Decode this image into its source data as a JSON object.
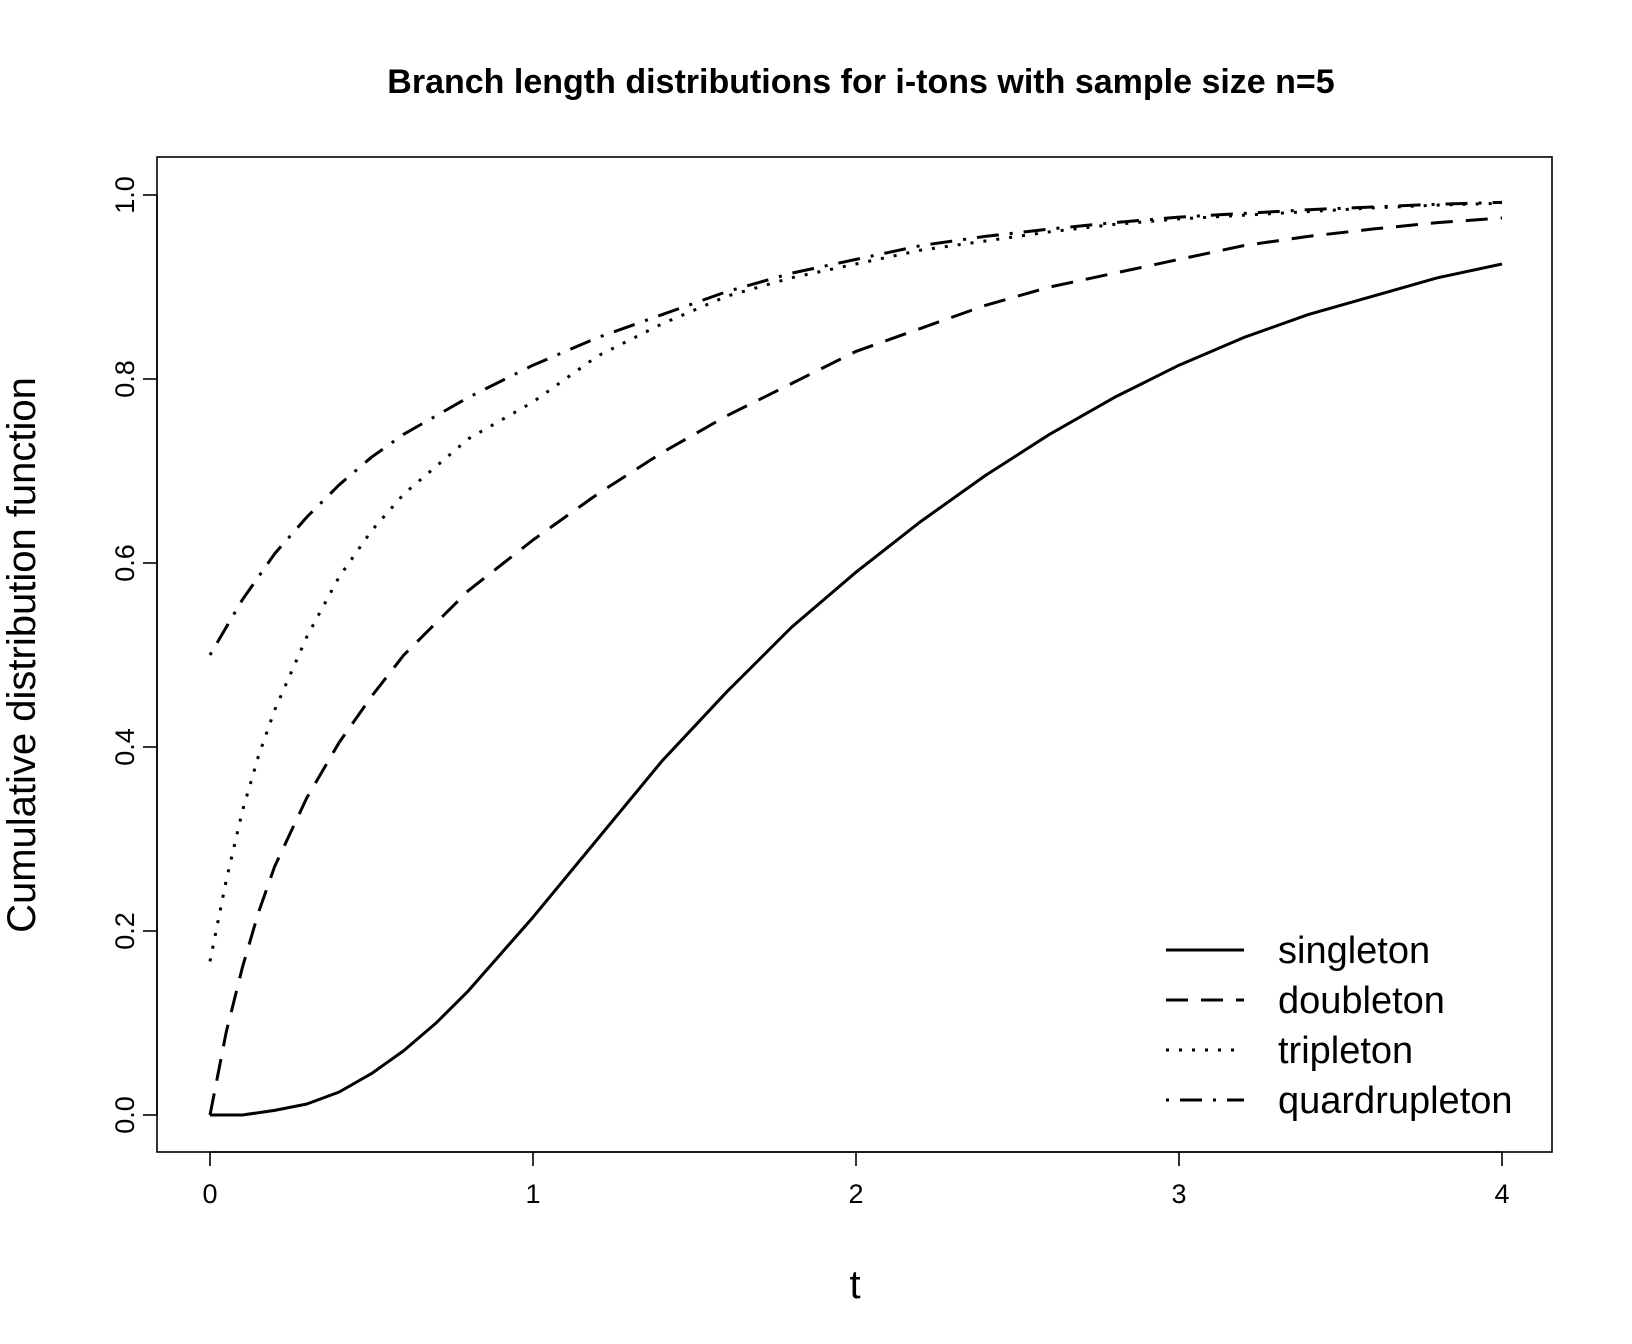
{
  "chart_data": {
    "type": "line",
    "title": "Branch length distributions for i-tons with sample size n=5",
    "xlabel": "t",
    "ylabel": "Cumulative distribution function",
    "xlim": [
      0,
      4
    ],
    "ylim": [
      0,
      1
    ],
    "x_ticks": [
      "0",
      "1",
      "2",
      "3",
      "4"
    ],
    "y_ticks": [
      "0.0",
      "0.2",
      "0.4",
      "0.6",
      "0.8",
      "1.0"
    ],
    "grid": false,
    "legend_position": "bottom-right",
    "series": [
      {
        "name": "singleton",
        "dash": "solid",
        "x": [
          0,
          0.1,
          0.2,
          0.3,
          0.4,
          0.5,
          0.6,
          0.7,
          0.8,
          0.9,
          1.0,
          1.2,
          1.4,
          1.6,
          1.8,
          2.0,
          2.2,
          2.4,
          2.6,
          2.8,
          3.0,
          3.2,
          3.4,
          3.6,
          3.8,
          4.0
        ],
        "y": [
          0,
          0.0,
          0.005,
          0.012,
          0.025,
          0.045,
          0.07,
          0.1,
          0.135,
          0.175,
          0.215,
          0.3,
          0.385,
          0.46,
          0.53,
          0.59,
          0.645,
          0.695,
          0.74,
          0.78,
          0.815,
          0.845,
          0.87,
          0.89,
          0.91,
          0.925
        ]
      },
      {
        "name": "doubleton",
        "dash": "dashed",
        "x": [
          0,
          0.05,
          0.1,
          0.15,
          0.2,
          0.3,
          0.4,
          0.5,
          0.6,
          0.8,
          1.0,
          1.2,
          1.4,
          1.6,
          1.8,
          2.0,
          2.2,
          2.4,
          2.6,
          2.8,
          3.0,
          3.2,
          3.4,
          3.6,
          3.8,
          4.0
        ],
        "y": [
          0,
          0.09,
          0.16,
          0.22,
          0.27,
          0.345,
          0.405,
          0.455,
          0.5,
          0.57,
          0.625,
          0.675,
          0.72,
          0.76,
          0.795,
          0.83,
          0.855,
          0.88,
          0.9,
          0.915,
          0.93,
          0.945,
          0.955,
          0.963,
          0.97,
          0.975
        ]
      },
      {
        "name": "tripleton",
        "dash": "dotted",
        "x": [
          0,
          0.05,
          0.1,
          0.15,
          0.2,
          0.3,
          0.4,
          0.5,
          0.6,
          0.8,
          1.0,
          1.2,
          1.4,
          1.6,
          1.8,
          2.0,
          2.2,
          2.4,
          2.6,
          2.8,
          3.0,
          3.2,
          3.4,
          3.6,
          3.8,
          4.0
        ],
        "y": [
          0.167,
          0.255,
          0.33,
          0.39,
          0.44,
          0.52,
          0.585,
          0.635,
          0.675,
          0.735,
          0.775,
          0.825,
          0.86,
          0.89,
          0.91,
          0.925,
          0.94,
          0.95,
          0.96,
          0.968,
          0.974,
          0.978,
          0.982,
          0.986,
          0.989,
          0.991
        ]
      },
      {
        "name": "quardrupleton",
        "dash": "dotdash",
        "x": [
          0,
          0.1,
          0.2,
          0.3,
          0.4,
          0.5,
          0.6,
          0.8,
          1.0,
          1.2,
          1.4,
          1.6,
          1.8,
          2.0,
          2.2,
          2.4,
          2.6,
          2.8,
          3.0,
          3.2,
          3.4,
          3.6,
          3.8,
          4.0
        ],
        "y": [
          0.5,
          0.56,
          0.61,
          0.65,
          0.685,
          0.715,
          0.74,
          0.78,
          0.815,
          0.845,
          0.87,
          0.895,
          0.915,
          0.93,
          0.945,
          0.955,
          0.963,
          0.97,
          0.976,
          0.98,
          0.984,
          0.987,
          0.99,
          0.992
        ]
      }
    ]
  }
}
